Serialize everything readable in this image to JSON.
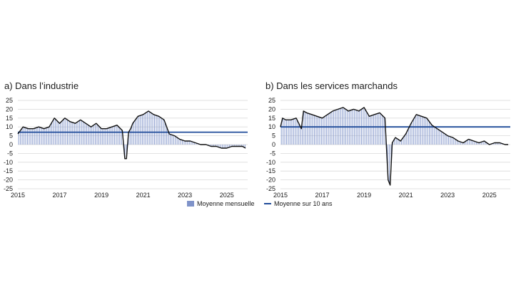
{
  "panel_a_title": "a)  Dans l’industrie",
  "panel_b_title": "b)  Dans les services marchands",
  "legend": {
    "monthly_label": "Moyenne mensuelle",
    "avg_label": "Moyenne sur 10 ans"
  },
  "colors": {
    "bars": "#7f93c9",
    "series_line": "#111111",
    "average_line": "#1f4b99",
    "grid": "#d9d9d9"
  },
  "chart_data": [
    {
      "type": "line",
      "panel": "a",
      "title": "Dans l’industrie",
      "ylim": [
        -25,
        25
      ],
      "yticks": [
        25,
        20,
        15,
        10,
        5,
        0,
        -5,
        -10,
        -15,
        -20,
        -25
      ],
      "xticks": [
        "2015",
        "2017",
        "2019",
        "2021",
        "2023",
        "2025"
      ],
      "xlim": [
        2015,
        2026
      ],
      "grid": true,
      "average": 7,
      "series": [
        {
          "x": [
            2015.0,
            2015.25,
            2015.5,
            2015.75,
            2016.0,
            2016.25,
            2016.5,
            2016.75,
            2017.0,
            2017.25,
            2017.5,
            2017.75,
            2018.0,
            2018.25,
            2018.5,
            2018.75,
            2019.0,
            2019.25,
            2019.5,
            2019.75,
            2020.0,
            2020.12,
            2020.2,
            2020.3,
            2020.4,
            2020.5,
            2020.75,
            2021.0,
            2021.25,
            2021.5,
            2021.75,
            2022.0,
            2022.25,
            2022.5,
            2022.75,
            2023.0,
            2023.25,
            2023.5,
            2023.75,
            2024.0,
            2024.25,
            2024.5,
            2024.75,
            2025.0,
            2025.25,
            2025.5,
            2025.75,
            2025.9
          ],
          "y": [
            6,
            10,
            9,
            9,
            10,
            9,
            10,
            15,
            12,
            15,
            13,
            12,
            14,
            12,
            10,
            12,
            9,
            9,
            10,
            11,
            8,
            -8,
            -8,
            7,
            9,
            12,
            16,
            17,
            19,
            17,
            16,
            14,
            6,
            5,
            3,
            2,
            2,
            1,
            0,
            0,
            -1,
            -1,
            -2,
            -2,
            -1,
            -1,
            -1,
            -2
          ]
        }
      ]
    },
    {
      "type": "line",
      "panel": "b",
      "title": "Dans les services marchands",
      "ylim": [
        -25,
        25
      ],
      "yticks": [
        25,
        20,
        15,
        10,
        5,
        0,
        -5,
        -10,
        -15,
        -20,
        -25
      ],
      "xticks": [
        "2015",
        "2017",
        "2019",
        "2021",
        "2023",
        "2025"
      ],
      "xlim": [
        2015,
        2026
      ],
      "grid": true,
      "average": 10,
      "series": [
        {
          "x": [
            2015.0,
            2015.1,
            2015.25,
            2015.5,
            2015.75,
            2016.0,
            2016.1,
            2016.25,
            2016.5,
            2016.75,
            2017.0,
            2017.25,
            2017.5,
            2017.75,
            2018.0,
            2018.25,
            2018.5,
            2018.75,
            2019.0,
            2019.25,
            2019.5,
            2019.75,
            2020.0,
            2020.15,
            2020.25,
            2020.35,
            2020.5,
            2020.75,
            2021.0,
            2021.25,
            2021.5,
            2021.75,
            2022.0,
            2022.25,
            2022.5,
            2022.75,
            2023.0,
            2023.25,
            2023.5,
            2023.75,
            2024.0,
            2024.25,
            2024.5,
            2024.75,
            2025.0,
            2025.25,
            2025.5,
            2025.75,
            2025.9
          ],
          "y": [
            10,
            15,
            14,
            14,
            15,
            9,
            19,
            18,
            17,
            16,
            15,
            17,
            19,
            20,
            21,
            19,
            20,
            19,
            21,
            16,
            17,
            18,
            15,
            -20,
            -23,
            1,
            4,
            2,
            6,
            12,
            17,
            16,
            15,
            11,
            9,
            7,
            5,
            4,
            2,
            1,
            3,
            2,
            1,
            2,
            0,
            1,
            1,
            0,
            0
          ]
        }
      ]
    }
  ]
}
